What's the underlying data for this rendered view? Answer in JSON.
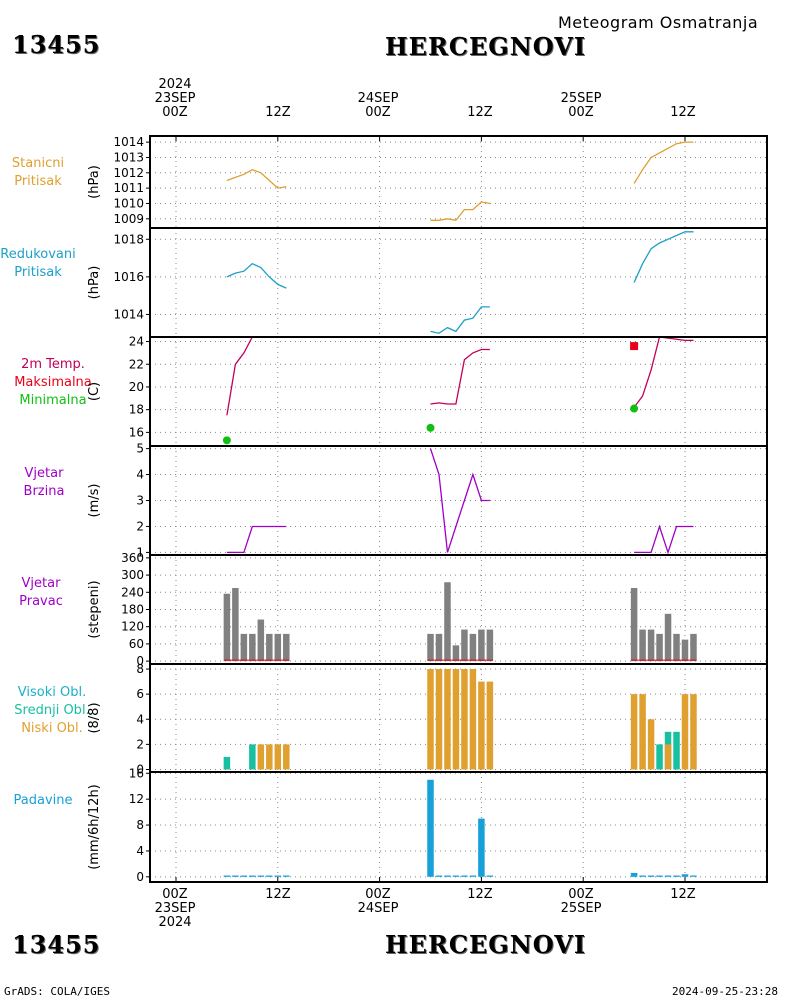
{
  "header": {
    "station_id": "13455",
    "station_name": "HERCEGNOVI",
    "title": "Meteogram Osmatranja"
  },
  "footer": {
    "station_id": "13455",
    "station_name": "HERCEGNOVI",
    "credit": "GrADS: COLA/IGES",
    "timestamp": "2024-09-25-23:28"
  },
  "time_axis": {
    "top": [
      {
        "line1": "2024",
        "line2": "23SEP",
        "line3": "00Z"
      },
      {
        "line1": "",
        "line2": "",
        "line3": "12Z"
      },
      {
        "line1": "",
        "line2": "24SEP",
        "line3": "00Z"
      },
      {
        "line1": "",
        "line2": "",
        "line3": "12Z"
      },
      {
        "line1": "",
        "line2": "25SEP",
        "line3": "00Z"
      },
      {
        "line1": "",
        "line2": "",
        "line3": "12Z"
      }
    ],
    "bottom": [
      {
        "line1": "00Z",
        "line2": "23SEP",
        "line3": "2024"
      },
      {
        "line1": "12Z",
        "line2": "",
        "line3": ""
      },
      {
        "line1": "00Z",
        "line2": "24SEP",
        "line3": ""
      },
      {
        "line1": "12Z",
        "line2": "",
        "line3": ""
      },
      {
        "line1": "00Z",
        "line2": "25SEP",
        "line3": ""
      },
      {
        "line1": "12Z",
        "line2": "",
        "line3": ""
      }
    ]
  },
  "panels": {
    "station_pressure": {
      "lines": [
        "Stanicni",
        "Pritisak"
      ],
      "unit": "(hPa)",
      "color": "#e0a030"
    },
    "reduced_pressure": {
      "lines": [
        "Redukovani",
        "Pritisak"
      ],
      "unit": "(hPa)",
      "color": "#1ca0c8"
    },
    "temperature": {
      "lines": [
        "2m Temp.",
        "Maksimalna",
        "Minimalna"
      ],
      "line_colors": [
        "#c0005a",
        "#e8001a",
        "#10c010"
      ],
      "unit": "(C)"
    },
    "wind_speed": {
      "lines": [
        "Vjetar",
        "Brzina"
      ],
      "unit": "(m/s)",
      "color": "#a000c8"
    },
    "wind_direction": {
      "lines": [
        "Vjetar",
        "Pravac"
      ],
      "unit": "(stepeni)",
      "color": "#a000c8"
    },
    "clouds": {
      "lines": [
        "Visoki Obl.",
        "Srednji Obl.",
        "Niski Obl."
      ],
      "line_colors": [
        "#18b0c8",
        "#18c0a0",
        "#e0a030"
      ],
      "unit": "(8/8)"
    },
    "precip": {
      "lines": [
        "Padavine"
      ],
      "unit": "(mm/6h/12h)",
      "color": "#18a0d8"
    }
  },
  "chart_data": [
    {
      "type": "line",
      "name": "station-pressure",
      "y_ticks": [
        1009,
        1010,
        1011,
        1012,
        1013,
        1014
      ],
      "ylim": [
        1008.4,
        1014.4
      ],
      "color": "#e0a030",
      "segments": [
        [
          [
            6,
            1011.5
          ],
          [
            7,
            1011.7
          ],
          [
            8,
            1011.9
          ],
          [
            9,
            1012.2
          ],
          [
            10,
            1012.0
          ],
          [
            11,
            1011.5
          ],
          [
            12,
            1011.0
          ],
          [
            13,
            1011.1
          ]
        ],
        [
          [
            30,
            1008.9
          ],
          [
            31,
            1008.9
          ],
          [
            32,
            1009.0
          ],
          [
            33,
            1008.9
          ],
          [
            34,
            1009.6
          ],
          [
            35,
            1009.6
          ],
          [
            36,
            1010.1
          ],
          [
            37,
            1010.0
          ]
        ],
        [
          [
            54,
            1011.3
          ],
          [
            55,
            1012.2
          ],
          [
            56,
            1013.0
          ],
          [
            57,
            1013.3
          ],
          [
            58,
            1013.6
          ],
          [
            59,
            1013.9
          ],
          [
            60,
            1014.0
          ],
          [
            61,
            1014.0
          ]
        ]
      ]
    },
    {
      "type": "line",
      "name": "reduced-pressure",
      "y_ticks": [
        1014,
        1016,
        1018
      ],
      "ylim": [
        1012.8,
        1018.6
      ],
      "color": "#1ca0c8",
      "segments": [
        [
          [
            6,
            1016.0
          ],
          [
            7,
            1016.2
          ],
          [
            8,
            1016.3
          ],
          [
            9,
            1016.7
          ],
          [
            10,
            1016.5
          ],
          [
            11,
            1016.0
          ],
          [
            12,
            1015.6
          ],
          [
            13,
            1015.4
          ]
        ],
        [
          [
            30,
            1013.1
          ],
          [
            31,
            1013.0
          ],
          [
            32,
            1013.3
          ],
          [
            33,
            1013.1
          ],
          [
            34,
            1013.7
          ],
          [
            35,
            1013.8
          ],
          [
            36,
            1014.4
          ],
          [
            37,
            1014.4
          ]
        ],
        [
          [
            54,
            1015.7
          ],
          [
            55,
            1016.7
          ],
          [
            56,
            1017.5
          ],
          [
            57,
            1017.8
          ],
          [
            58,
            1018.0
          ],
          [
            59,
            1018.2
          ],
          [
            60,
            1018.4
          ],
          [
            61,
            1018.4
          ]
        ]
      ]
    },
    {
      "type": "line",
      "name": "temperature",
      "y_ticks": [
        16,
        18,
        20,
        22,
        24
      ],
      "ylim": [
        14.8,
        24.4
      ],
      "color": "#c0005a",
      "segments": [
        [
          [
            6,
            17.5
          ],
          [
            7,
            22.0
          ],
          [
            8,
            23.0
          ],
          [
            9,
            24.4
          ]
        ],
        [
          [
            30,
            18.5
          ],
          [
            31,
            18.6
          ],
          [
            32,
            18.5
          ],
          [
            33,
            18.5
          ],
          [
            34,
            22.4
          ],
          [
            35,
            23.0
          ],
          [
            36,
            23.3
          ],
          [
            37,
            23.3
          ]
        ],
        [
          [
            54,
            18.2
          ],
          [
            55,
            19.2
          ],
          [
            56,
            21.5
          ],
          [
            57,
            24.4
          ],
          [
            60,
            24.1
          ],
          [
            61,
            24.1
          ]
        ]
      ],
      "max_points": [
        [
          54,
          23.6
        ]
      ],
      "min_points": [
        [
          6,
          15.3
        ],
        [
          30,
          16.4
        ],
        [
          54,
          18.1
        ]
      ],
      "max_color": "#e8001a",
      "min_color": "#10c010"
    },
    {
      "type": "line",
      "name": "wind-speed",
      "y_ticks": [
        1,
        2,
        3,
        4,
        5
      ],
      "ylim": [
        0.9,
        5.1
      ],
      "color": "#a000c8",
      "segments": [
        [
          [
            6,
            1
          ],
          [
            7,
            1
          ],
          [
            8,
            1
          ],
          [
            9,
            2
          ],
          [
            10,
            2
          ],
          [
            11,
            2
          ],
          [
            12,
            2
          ],
          [
            13,
            2
          ]
        ],
        [
          [
            30,
            5
          ],
          [
            31,
            4
          ],
          [
            32,
            1
          ],
          [
            33,
            2
          ],
          [
            34,
            3
          ],
          [
            35,
            4
          ],
          [
            36,
            3
          ],
          [
            37,
            3
          ]
        ],
        [
          [
            54,
            1
          ],
          [
            55,
            1
          ],
          [
            56,
            1
          ],
          [
            57,
            2
          ],
          [
            58,
            1
          ],
          [
            59,
            2
          ],
          [
            60,
            2
          ],
          [
            61,
            2
          ]
        ]
      ]
    },
    {
      "type": "bar",
      "name": "wind-direction",
      "y_ticks": [
        0,
        60,
        120,
        180,
        240,
        300,
        360
      ],
      "ylim": [
        -10,
        370
      ],
      "color": "#808080",
      "bars": [
        [
          6,
          235
        ],
        [
          7,
          255
        ],
        [
          8,
          95
        ],
        [
          9,
          95
        ],
        [
          10,
          145
        ],
        [
          11,
          95
        ],
        [
          12,
          95
        ],
        [
          13,
          95
        ],
        [
          30,
          95
        ],
        [
          31,
          95
        ],
        [
          32,
          275
        ],
        [
          33,
          55
        ],
        [
          34,
          110
        ],
        [
          35,
          95
        ],
        [
          36,
          110
        ],
        [
          37,
          110
        ],
        [
          54,
          255
        ],
        [
          55,
          110
        ],
        [
          56,
          110
        ],
        [
          57,
          95
        ],
        [
          58,
          165
        ],
        [
          59,
          95
        ],
        [
          60,
          75
        ],
        [
          61,
          95
        ]
      ]
    },
    {
      "type": "bar",
      "name": "clouds",
      "y_ticks": [
        0,
        2,
        4,
        6,
        8
      ],
      "ylim": [
        -0.2,
        8.4
      ],
      "series": [
        {
          "name": "Srednji Obl.",
          "color": "#18c0a0",
          "bars": [
            [
              6,
              1
            ],
            [
              9,
              2
            ],
            [
              57,
              2
            ],
            [
              58,
              3
            ],
            [
              59,
              3
            ]
          ]
        },
        {
          "name": "Niski Obl.",
          "color": "#e0a030",
          "bars": [
            [
              10,
              2
            ],
            [
              11,
              2
            ],
            [
              12,
              2
            ],
            [
              13,
              2
            ],
            [
              30,
              8
            ],
            [
              31,
              8
            ],
            [
              32,
              8
            ],
            [
              33,
              8
            ],
            [
              34,
              8
            ],
            [
              35,
              8
            ],
            [
              36,
              7
            ],
            [
              37,
              7
            ],
            [
              54,
              6
            ],
            [
              55,
              6
            ],
            [
              56,
              4
            ],
            [
              58,
              2
            ],
            [
              60,
              6
            ],
            [
              61,
              6
            ]
          ]
        }
      ]
    },
    {
      "type": "bar",
      "name": "precip",
      "y_ticks": [
        0,
        4,
        8,
        12,
        16
      ],
      "ylim": [
        -0.8,
        16.2
      ],
      "color": "#18a0d8",
      "bars": [
        [
          6,
          0.2
        ],
        [
          7,
          0.2
        ],
        [
          8,
          0.2
        ],
        [
          9,
          0.2
        ],
        [
          10,
          0.2
        ],
        [
          11,
          0.2
        ],
        [
          12,
          0.2
        ],
        [
          13,
          0.2
        ],
        [
          30,
          15
        ],
        [
          31,
          0.2
        ],
        [
          32,
          0.2
        ],
        [
          33,
          0.2
        ],
        [
          34,
          0.2
        ],
        [
          35,
          0.2
        ],
        [
          36,
          9
        ],
        [
          37,
          0.2
        ],
        [
          54,
          0.6
        ],
        [
          55,
          0.2
        ],
        [
          56,
          0.2
        ],
        [
          57,
          0.2
        ],
        [
          58,
          0.2
        ],
        [
          59,
          0.2
        ],
        [
          60,
          0.4
        ],
        [
          61,
          0.2
        ]
      ]
    }
  ]
}
